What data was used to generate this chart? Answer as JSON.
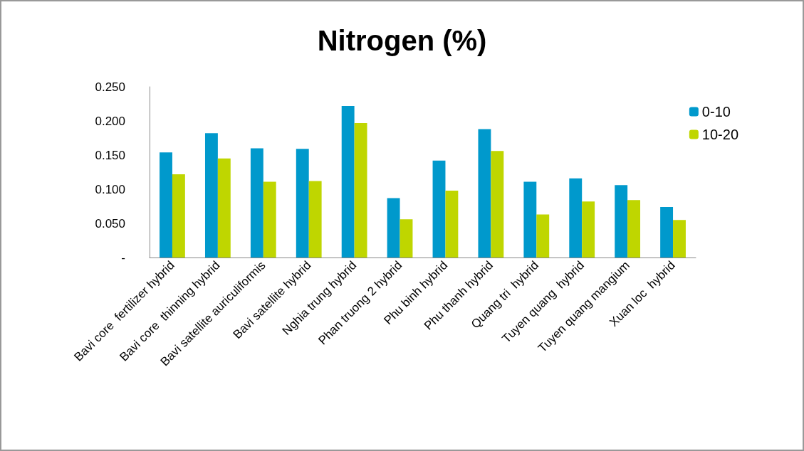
{
  "chart_data": {
    "type": "bar",
    "title": "Nitrogen (%)",
    "categories": [
      "Bavi core  fertilizer hybrid",
      "Bavi core  thinning hybrid",
      "Bavi satellite auriculiformis",
      "Bavi satellite hybrid",
      "Nghia trung hybrid",
      "Phan truong 2 hybrid",
      "Phu binh hybrid",
      "Phu thanh hybrid",
      "Quang tri  hybrid",
      "Tuyen quang  hybrid",
      "Tuyen quang mangium",
      "Xuan loc  hybrid"
    ],
    "series": [
      {
        "name": "0-10",
        "color": "#0099cc",
        "values": [
          0.154,
          0.182,
          0.16,
          0.159,
          0.222,
          0.087,
          0.142,
          0.188,
          0.111,
          0.116,
          0.106,
          0.074
        ]
      },
      {
        "name": "10-20",
        "color": "#bfd600",
        "values": [
          0.122,
          0.145,
          0.111,
          0.112,
          0.197,
          0.056,
          0.098,
          0.156,
          0.063,
          0.082,
          0.084,
          0.055
        ]
      }
    ],
    "ylim": [
      0,
      0.25
    ],
    "yticks": [
      {
        "value": 0,
        "label": "-"
      },
      {
        "value": 0.05,
        "label": "0.050"
      },
      {
        "value": 0.1,
        "label": "0.100"
      },
      {
        "value": 0.15,
        "label": "0.150"
      },
      {
        "value": 0.2,
        "label": "0.200"
      },
      {
        "value": 0.25,
        "label": "0.250"
      }
    ],
    "grid": false,
    "legend": "top right"
  }
}
